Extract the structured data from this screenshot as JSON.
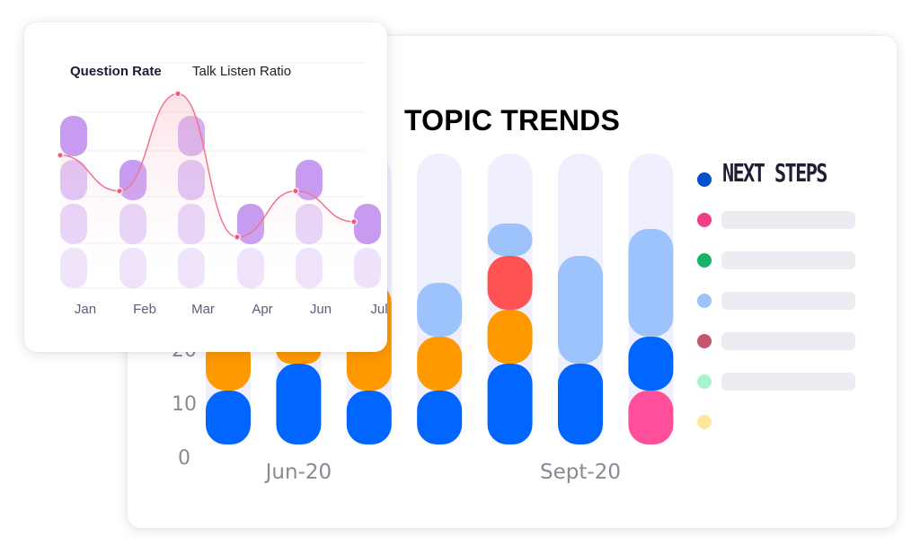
{
  "title": "TOPIC TRENDS",
  "legend": {
    "items": [
      {
        "label": "NEXT STEPS",
        "color": "#0052cc"
      },
      {
        "label": "",
        "color": "#f03e8a"
      },
      {
        "label": "",
        "color": "#17b26a"
      },
      {
        "label": "",
        "color": "#9ec2fb"
      },
      {
        "label": "",
        "color": "#c4566e"
      },
      {
        "label": "",
        "color": "#a6f5cf"
      },
      {
        "label": "",
        "color": "#fde89b"
      }
    ]
  },
  "tabs": {
    "question_rate": "Question Rate",
    "talk_listen_ratio": "Talk Listen Ratio"
  },
  "colors": {
    "dark_blue": "#0066ff",
    "orange": "#ff9900",
    "light_blue": "#9cc3fc",
    "red": "#ff5252",
    "pink": "#ff4f9a",
    "track": "#efeffd",
    "purple": "#c79bf0",
    "curve": "#f0758f"
  },
  "chart_data": [
    {
      "type": "bar",
      "stacked": true,
      "title": "TOPIC TRENDS",
      "y_ticks": [
        "0",
        "10",
        "20"
      ],
      "x_labels": [
        "Jun-20",
        "Sept-20"
      ],
      "bars": [
        {
          "segments": [
            {
              "color": "#0066ff",
              "value": 10
            },
            {
              "color": "#ff9900",
              "value": 10
            },
            {
              "color": "#9cc3fc",
              "value": 10
            }
          ]
        },
        {
          "segments": [
            {
              "color": "#0066ff",
              "value": 15
            },
            {
              "color": "#ff9900",
              "value": 5
            },
            {
              "color": "#9cc3fc",
              "value": 10
            }
          ]
        },
        {
          "segments": [
            {
              "color": "#0066ff",
              "value": 10
            },
            {
              "color": "#ff9900",
              "value": 20
            }
          ]
        },
        {
          "segments": [
            {
              "color": "#0066ff",
              "value": 10
            },
            {
              "color": "#ff9900",
              "value": 10
            },
            {
              "color": "#9cc3fc",
              "value": 10
            }
          ]
        },
        {
          "segments": [
            {
              "color": "#0066ff",
              "value": 15
            },
            {
              "color": "#ff9900",
              "value": 10
            },
            {
              "color": "#ff5252",
              "value": 10
            },
            {
              "color": "#9cc3fc",
              "value": 6
            }
          ]
        },
        {
          "segments": [
            {
              "color": "#0066ff",
              "value": 15
            },
            {
              "color": "#9cc3fc",
              "value": 20
            }
          ]
        },
        {
          "segments": [
            {
              "color": "#ff4f9a",
              "value": 10
            },
            {
              "color": "#0066ff",
              "value": 10
            },
            {
              "color": "#9cc3fc",
              "value": 20
            }
          ]
        }
      ],
      "track_max": 54
    },
    {
      "type": "line",
      "categories": [
        "Jan",
        "Feb",
        "Mar",
        "Apr",
        "Jun",
        "Jul"
      ],
      "values": [
        3.8,
        3.1,
        5.0,
        2.2,
        3.1,
        2.5
      ],
      "pill_levels": [
        3,
        2,
        4,
        1,
        2,
        1
      ],
      "grid": true
    }
  ]
}
